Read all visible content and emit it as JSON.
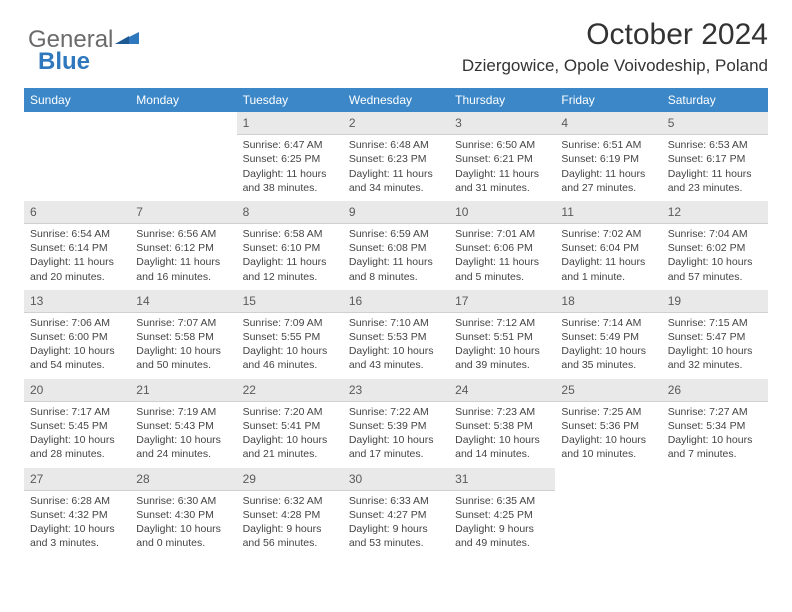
{
  "logo": {
    "part1": "General",
    "part2": "Blue"
  },
  "header": {
    "title": "October 2024",
    "location": "Dziergowice, Opole Voivodeship, Poland"
  },
  "colors": {
    "header_bg": "#3b87c8",
    "header_text": "#ffffff",
    "daynum_bg": "#e9e9e9",
    "daynum_text": "#5a5a5a",
    "body_text": "#444444",
    "logo_gray": "#6b6b6b",
    "logo_blue": "#2f78bd"
  },
  "dayNames": [
    "Sunday",
    "Monday",
    "Tuesday",
    "Wednesday",
    "Thursday",
    "Friday",
    "Saturday"
  ],
  "weeks": [
    [
      {
        "empty": true
      },
      {
        "empty": true
      },
      {
        "num": "1",
        "sunrise": "Sunrise: 6:47 AM",
        "sunset": "Sunset: 6:25 PM",
        "daylight": "Daylight: 11 hours and 38 minutes."
      },
      {
        "num": "2",
        "sunrise": "Sunrise: 6:48 AM",
        "sunset": "Sunset: 6:23 PM",
        "daylight": "Daylight: 11 hours and 34 minutes."
      },
      {
        "num": "3",
        "sunrise": "Sunrise: 6:50 AM",
        "sunset": "Sunset: 6:21 PM",
        "daylight": "Daylight: 11 hours and 31 minutes."
      },
      {
        "num": "4",
        "sunrise": "Sunrise: 6:51 AM",
        "sunset": "Sunset: 6:19 PM",
        "daylight": "Daylight: 11 hours and 27 minutes."
      },
      {
        "num": "5",
        "sunrise": "Sunrise: 6:53 AM",
        "sunset": "Sunset: 6:17 PM",
        "daylight": "Daylight: 11 hours and 23 minutes."
      }
    ],
    [
      {
        "num": "6",
        "sunrise": "Sunrise: 6:54 AM",
        "sunset": "Sunset: 6:14 PM",
        "daylight": "Daylight: 11 hours and 20 minutes."
      },
      {
        "num": "7",
        "sunrise": "Sunrise: 6:56 AM",
        "sunset": "Sunset: 6:12 PM",
        "daylight": "Daylight: 11 hours and 16 minutes."
      },
      {
        "num": "8",
        "sunrise": "Sunrise: 6:58 AM",
        "sunset": "Sunset: 6:10 PM",
        "daylight": "Daylight: 11 hours and 12 minutes."
      },
      {
        "num": "9",
        "sunrise": "Sunrise: 6:59 AM",
        "sunset": "Sunset: 6:08 PM",
        "daylight": "Daylight: 11 hours and 8 minutes."
      },
      {
        "num": "10",
        "sunrise": "Sunrise: 7:01 AM",
        "sunset": "Sunset: 6:06 PM",
        "daylight": "Daylight: 11 hours and 5 minutes."
      },
      {
        "num": "11",
        "sunrise": "Sunrise: 7:02 AM",
        "sunset": "Sunset: 6:04 PM",
        "daylight": "Daylight: 11 hours and 1 minute."
      },
      {
        "num": "12",
        "sunrise": "Sunrise: 7:04 AM",
        "sunset": "Sunset: 6:02 PM",
        "daylight": "Daylight: 10 hours and 57 minutes."
      }
    ],
    [
      {
        "num": "13",
        "sunrise": "Sunrise: 7:06 AM",
        "sunset": "Sunset: 6:00 PM",
        "daylight": "Daylight: 10 hours and 54 minutes."
      },
      {
        "num": "14",
        "sunrise": "Sunrise: 7:07 AM",
        "sunset": "Sunset: 5:58 PM",
        "daylight": "Daylight: 10 hours and 50 minutes."
      },
      {
        "num": "15",
        "sunrise": "Sunrise: 7:09 AM",
        "sunset": "Sunset: 5:55 PM",
        "daylight": "Daylight: 10 hours and 46 minutes."
      },
      {
        "num": "16",
        "sunrise": "Sunrise: 7:10 AM",
        "sunset": "Sunset: 5:53 PM",
        "daylight": "Daylight: 10 hours and 43 minutes."
      },
      {
        "num": "17",
        "sunrise": "Sunrise: 7:12 AM",
        "sunset": "Sunset: 5:51 PM",
        "daylight": "Daylight: 10 hours and 39 minutes."
      },
      {
        "num": "18",
        "sunrise": "Sunrise: 7:14 AM",
        "sunset": "Sunset: 5:49 PM",
        "daylight": "Daylight: 10 hours and 35 minutes."
      },
      {
        "num": "19",
        "sunrise": "Sunrise: 7:15 AM",
        "sunset": "Sunset: 5:47 PM",
        "daylight": "Daylight: 10 hours and 32 minutes."
      }
    ],
    [
      {
        "num": "20",
        "sunrise": "Sunrise: 7:17 AM",
        "sunset": "Sunset: 5:45 PM",
        "daylight": "Daylight: 10 hours and 28 minutes."
      },
      {
        "num": "21",
        "sunrise": "Sunrise: 7:19 AM",
        "sunset": "Sunset: 5:43 PM",
        "daylight": "Daylight: 10 hours and 24 minutes."
      },
      {
        "num": "22",
        "sunrise": "Sunrise: 7:20 AM",
        "sunset": "Sunset: 5:41 PM",
        "daylight": "Daylight: 10 hours and 21 minutes."
      },
      {
        "num": "23",
        "sunrise": "Sunrise: 7:22 AM",
        "sunset": "Sunset: 5:39 PM",
        "daylight": "Daylight: 10 hours and 17 minutes."
      },
      {
        "num": "24",
        "sunrise": "Sunrise: 7:23 AM",
        "sunset": "Sunset: 5:38 PM",
        "daylight": "Daylight: 10 hours and 14 minutes."
      },
      {
        "num": "25",
        "sunrise": "Sunrise: 7:25 AM",
        "sunset": "Sunset: 5:36 PM",
        "daylight": "Daylight: 10 hours and 10 minutes."
      },
      {
        "num": "26",
        "sunrise": "Sunrise: 7:27 AM",
        "sunset": "Sunset: 5:34 PM",
        "daylight": "Daylight: 10 hours and 7 minutes."
      }
    ],
    [
      {
        "num": "27",
        "sunrise": "Sunrise: 6:28 AM",
        "sunset": "Sunset: 4:32 PM",
        "daylight": "Daylight: 10 hours and 3 minutes."
      },
      {
        "num": "28",
        "sunrise": "Sunrise: 6:30 AM",
        "sunset": "Sunset: 4:30 PM",
        "daylight": "Daylight: 10 hours and 0 minutes."
      },
      {
        "num": "29",
        "sunrise": "Sunrise: 6:32 AM",
        "sunset": "Sunset: 4:28 PM",
        "daylight": "Daylight: 9 hours and 56 minutes."
      },
      {
        "num": "30",
        "sunrise": "Sunrise: 6:33 AM",
        "sunset": "Sunset: 4:27 PM",
        "daylight": "Daylight: 9 hours and 53 minutes."
      },
      {
        "num": "31",
        "sunrise": "Sunrise: 6:35 AM",
        "sunset": "Sunset: 4:25 PM",
        "daylight": "Daylight: 9 hours and 49 minutes."
      },
      {
        "empty": true
      },
      {
        "empty": true
      }
    ]
  ]
}
